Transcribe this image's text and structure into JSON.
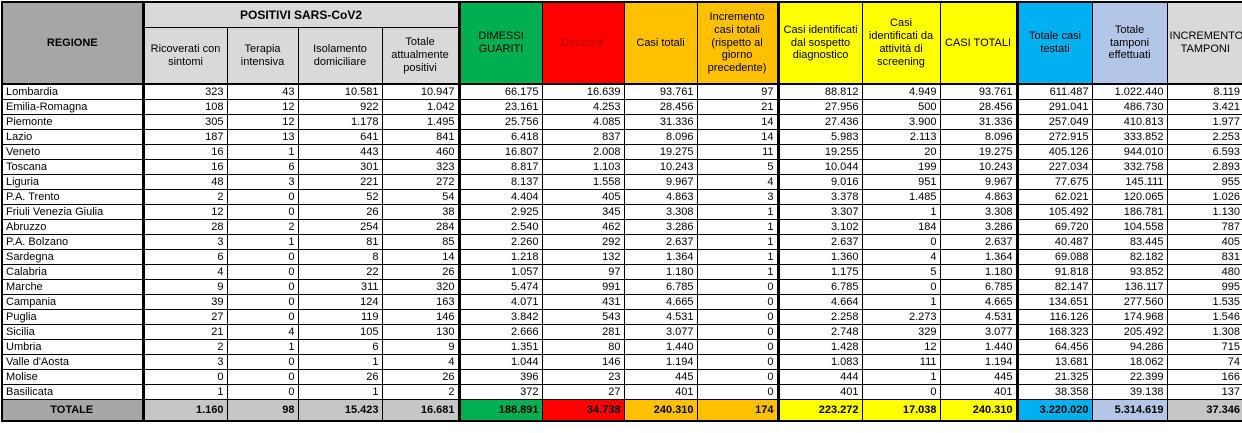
{
  "colors": {
    "guariti_green": "#00B050",
    "deceduti_red": "#FF0000",
    "casi_orange": "#FFC000",
    "casi_yellow": "#FFFF00",
    "testati_blue": "#00B0F0",
    "tamponi_lightblue": "#B4C6E7",
    "regione_gray": "#A6A6A6",
    "header_gray": "#D9D9D9"
  },
  "chart_data": {
    "type": "table",
    "header": {
      "regione": "REGIONE",
      "positivi_group": "POSITIVI SARS-CoV2",
      "sub": [
        "Ricoverati con sintomi",
        "Terapia intensiva",
        "Isolamento domiciliare",
        "Totale attualmente positivi"
      ],
      "dimessi": "DIMESSI GUARITI",
      "deceduti": "Deceduti",
      "casi_totali": "Casi totali",
      "incremento_casi": "Incremento casi totali (rispetto al giorno precedente)",
      "sospetto": "Casi identificati dal sospetto diagnostico",
      "screening": "Casi identificati da attività di screening",
      "casi_totali_2": "CASI TOTALI",
      "testati": "Totale casi testati",
      "tamponi": "Totale tamponi effettuati",
      "incremento_tamponi": "INCREMENTO TAMPONI"
    },
    "rows": [
      [
        "Lombardia",
        "323",
        "43",
        "10.581",
        "10.947",
        "66.175",
        "16.639",
        "93.761",
        "97",
        "88.812",
        "4.949",
        "93.761",
        "611.487",
        "1.022.440",
        "8.119"
      ],
      [
        "Emilia-Romagna",
        "108",
        "12",
        "922",
        "1.042",
        "23.161",
        "4.253",
        "28.456",
        "21",
        "27.956",
        "500",
        "28.456",
        "291.041",
        "486.730",
        "3.421"
      ],
      [
        "Piemonte",
        "305",
        "12",
        "1.178",
        "1.495",
        "25.756",
        "4.085",
        "31.336",
        "14",
        "27.436",
        "3.900",
        "31.336",
        "257.049",
        "410.813",
        "1.977"
      ],
      [
        "Lazio",
        "187",
        "13",
        "641",
        "841",
        "6.418",
        "837",
        "8.096",
        "14",
        "5.983",
        "2.113",
        "8.096",
        "272.915",
        "333.852",
        "2.253"
      ],
      [
        "Veneto",
        "16",
        "1",
        "443",
        "460",
        "16.807",
        "2.008",
        "19.275",
        "11",
        "19.255",
        "20",
        "19.275",
        "405.126",
        "944.010",
        "6.593"
      ],
      [
        "Toscana",
        "16",
        "6",
        "301",
        "323",
        "8.817",
        "1.103",
        "10.243",
        "5",
        "10.044",
        "199",
        "10.243",
        "227.034",
        "332.758",
        "2.893"
      ],
      [
        "Liguria",
        "48",
        "3",
        "221",
        "272",
        "8.137",
        "1.558",
        "9.967",
        "4",
        "9.016",
        "951",
        "9.967",
        "77.675",
        "145.111",
        "955"
      ],
      [
        "P.A. Trento",
        "2",
        "0",
        "52",
        "54",
        "4.404",
        "405",
        "4.863",
        "3",
        "3.378",
        "1.485",
        "4.863",
        "62.021",
        "120.065",
        "1.026"
      ],
      [
        "Friuli Venezia Giulia",
        "12",
        "0",
        "26",
        "38",
        "2.925",
        "345",
        "3.308",
        "1",
        "3.307",
        "1",
        "3.308",
        "105.492",
        "186.781",
        "1.130"
      ],
      [
        "Abruzzo",
        "28",
        "2",
        "254",
        "284",
        "2.540",
        "462",
        "3.286",
        "1",
        "3.102",
        "184",
        "3.286",
        "69.720",
        "104.558",
        "787"
      ],
      [
        "P.A. Bolzano",
        "3",
        "1",
        "81",
        "85",
        "2.260",
        "292",
        "2.637",
        "1",
        "2.637",
        "0",
        "2.637",
        "40.487",
        "83.445",
        "405"
      ],
      [
        "Sardegna",
        "6",
        "0",
        "8",
        "14",
        "1.218",
        "132",
        "1.364",
        "1",
        "1.360",
        "4",
        "1.364",
        "69.088",
        "82.182",
        "831"
      ],
      [
        "Calabria",
        "4",
        "0",
        "22",
        "26",
        "1.057",
        "97",
        "1.180",
        "1",
        "1.175",
        "5",
        "1.180",
        "91.818",
        "93.852",
        "480"
      ],
      [
        "Marche",
        "9",
        "0",
        "311",
        "320",
        "5.474",
        "991",
        "6.785",
        "0",
        "6.785",
        "0",
        "6.785",
        "82.147",
        "136.117",
        "995"
      ],
      [
        "Campania",
        "39",
        "0",
        "124",
        "163",
        "4.071",
        "431",
        "4.665",
        "0",
        "4.664",
        "1",
        "4.665",
        "134.651",
        "277.560",
        "1.535"
      ],
      [
        "Puglia",
        "27",
        "0",
        "119",
        "146",
        "3.842",
        "543",
        "4.531",
        "0",
        "2.258",
        "2.273",
        "4.531",
        "116.126",
        "174.968",
        "1.546"
      ],
      [
        "Sicilia",
        "21",
        "4",
        "105",
        "130",
        "2.666",
        "281",
        "3.077",
        "0",
        "2.748",
        "329",
        "3.077",
        "168.323",
        "205.492",
        "1.308"
      ],
      [
        "Umbria",
        "2",
        "1",
        "6",
        "9",
        "1.351",
        "80",
        "1.440",
        "0",
        "1.428",
        "12",
        "1.440",
        "64.456",
        "94.286",
        "715"
      ],
      [
        "Valle d'Aosta",
        "3",
        "0",
        "1",
        "4",
        "1.044",
        "146",
        "1.194",
        "0",
        "1.083",
        "111",
        "1.194",
        "13.681",
        "18.062",
        "74"
      ],
      [
        "Molise",
        "0",
        "0",
        "26",
        "26",
        "396",
        "23",
        "445",
        "0",
        "444",
        "1",
        "445",
        "21.325",
        "22.399",
        "166"
      ],
      [
        "Basilicata",
        "1",
        "0",
        "1",
        "2",
        "372",
        "27",
        "401",
        "0",
        "401",
        "0",
        "401",
        "38.358",
        "39.138",
        "137"
      ]
    ],
    "total_row": [
      "TOTALE",
      "1.160",
      "98",
      "15.423",
      "16.681",
      "188.891",
      "34.738",
      "240.310",
      "174",
      "223.272",
      "17.038",
      "240.310",
      "3.220.020",
      "5.314.619",
      "37.346"
    ]
  }
}
